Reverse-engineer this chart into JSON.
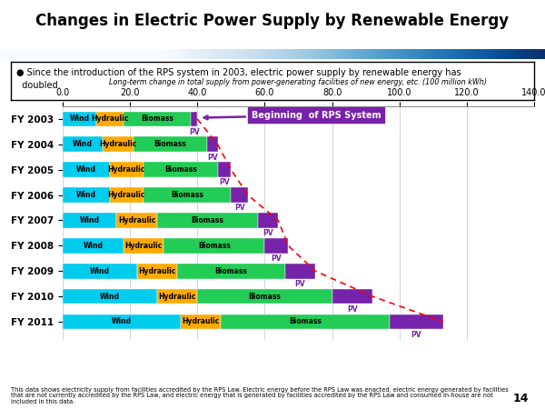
{
  "title": "Changes in Electric Power Supply by Renewable Energy",
  "subtitle": "● Since the introduction of the RPS system in 2003, electric power supply by renewable energy has\n  doubled.",
  "axis_label": "Long-term change in total supply from power-generating facilities of new energy, etc. (100 million kWh)",
  "xlim": [
    0,
    140
  ],
  "xticks": [
    0,
    20,
    40,
    60,
    80,
    100,
    120,
    140
  ],
  "xtick_labels": [
    "0.0",
    "20.0",
    "40.0",
    "60.0",
    "80.0",
    "100.0",
    "120.0",
    "140.0"
  ],
  "years": [
    "FY 2003",
    "FY 2004",
    "FY 2005",
    "FY 2006",
    "FY 2007",
    "FY 2008",
    "FY 2009",
    "FY 2010",
    "FY 2011"
  ],
  "wind": [
    10,
    12,
    14,
    14,
    16,
    18,
    22,
    28,
    35
  ],
  "hydraulic": [
    8,
    9,
    10,
    10,
    12,
    12,
    12,
    12,
    12
  ],
  "biomass": [
    20,
    22,
    22,
    26,
    30,
    30,
    32,
    40,
    50
  ],
  "pv": [
    2,
    3,
    4,
    5,
    6,
    7,
    9,
    12,
    16
  ],
  "wind_color": "#00CCEE",
  "hydraulic_color": "#FFAA00",
  "biomass_color": "#22CC55",
  "pv_color": "#7722AA",
  "pv_label_color": "#7722AA",
  "rps_label": "Beginning  of RPS System",
  "rps_box_color": "#7722AA",
  "footnote": "This data shows electricity supply from facilities accredited by the RPS Law. Electric energy before the RPS Law was enacted, electric energy generated by facilities\nthat are not currently accredited by the RPS Law, and electric energy that is generated by facilities accredited by the RPS Law and consumed in-house are not\nincluded in this data.",
  "page_num": "14",
  "title_bar_colors": [
    "#003399",
    "#6699CC",
    "#AACCEE"
  ],
  "background_color": "#FFFFFF"
}
